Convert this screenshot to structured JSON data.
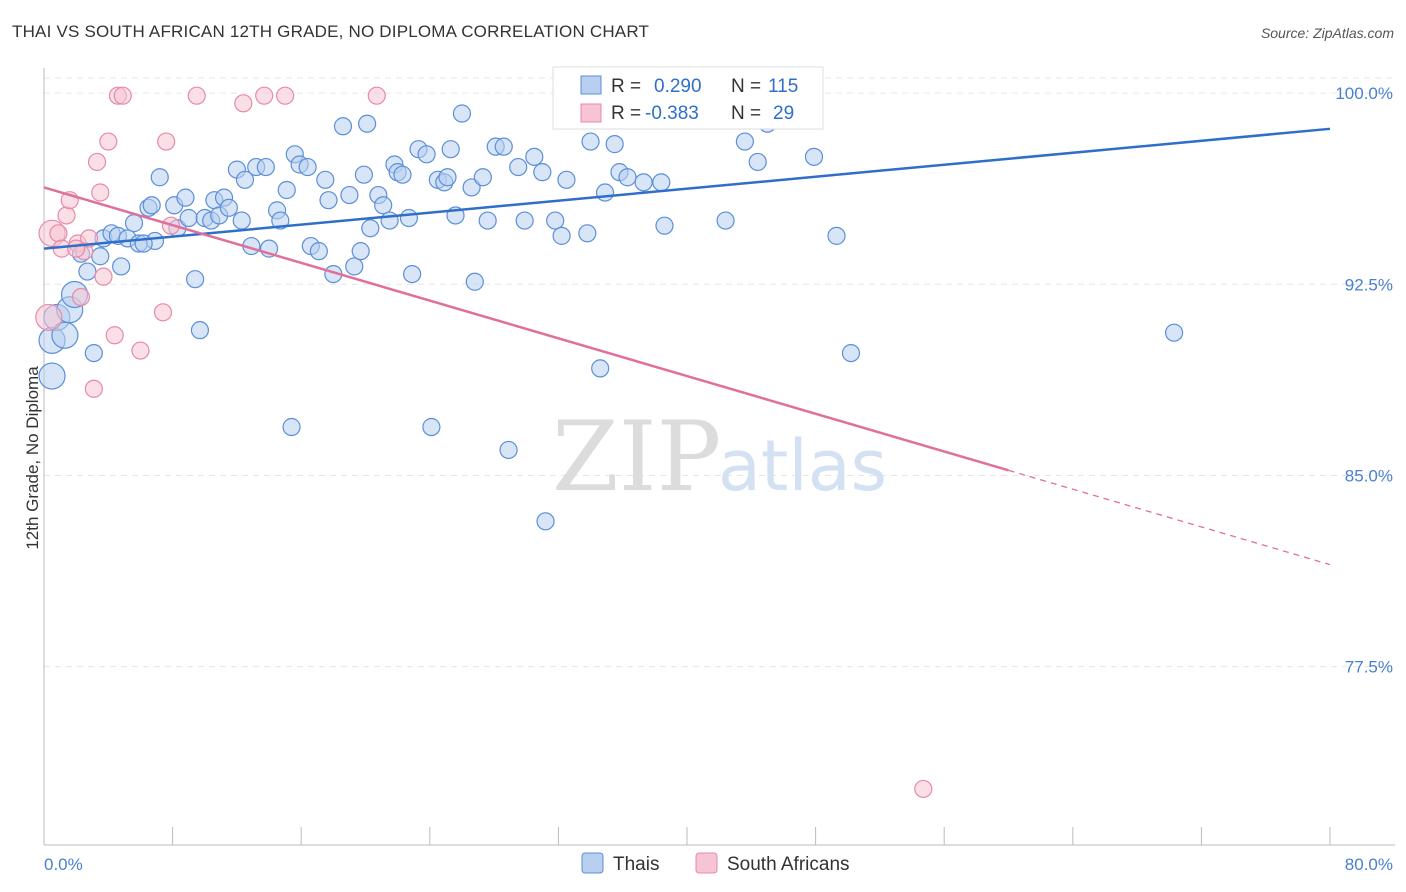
{
  "chart_data": {
    "type": "scatter",
    "title": "THAI VS SOUTH AFRICAN 12TH GRADE, NO DIPLOMA CORRELATION CHART",
    "source": "Source: ZipAtlas.com",
    "xlabel": "",
    "ylabel": "12th Grade, No Diploma",
    "xlim": [
      0,
      80
    ],
    "ylim": [
      70.5,
      101.3
    ],
    "x_tick_labels": [
      "0.0%",
      "80.0%"
    ],
    "y_ticks": [
      100.0,
      92.5,
      85.0,
      77.5
    ],
    "y_tick_labels": [
      "100.0%",
      "92.5%",
      "85.0%",
      "77.5%"
    ],
    "watermark": [
      "ZIP",
      "atlas"
    ],
    "legend": {
      "series": [
        {
          "name": "Thais",
          "r_label": "R =",
          "r_value": "0.290",
          "n_label": "N =",
          "n_value": "115"
        },
        {
          "name": "South Africans",
          "r_label": "R =",
          "r_value": "-0.383",
          "n_label": "N =",
          "n_value": "29"
        }
      ]
    },
    "series": [
      {
        "name": "Thais",
        "color": "#5b8fd8",
        "fill": "#b8cff0",
        "trend": {
          "x0": 0,
          "y0": 93.9,
          "x1": 80,
          "y1": 98.6,
          "line_color": "#2f6fc9"
        },
        "points": [
          [
            0.5,
            88.9
          ],
          [
            0.5,
            90.3
          ],
          [
            0.8,
            91.2
          ],
          [
            1.3,
            90.5
          ],
          [
            1.6,
            91.5
          ],
          [
            1.9,
            92.1
          ],
          [
            2.3,
            93.7
          ],
          [
            2.7,
            93.0
          ],
          [
            3.1,
            89.8
          ],
          [
            3.5,
            93.6
          ],
          [
            3.7,
            94.3
          ],
          [
            4.2,
            94.5
          ],
          [
            4.6,
            94.4
          ],
          [
            4.8,
            93.2
          ],
          [
            5.2,
            94.3
          ],
          [
            5.6,
            94.9
          ],
          [
            5.9,
            94.1
          ],
          [
            6.5,
            95.5
          ],
          [
            6.7,
            95.6
          ],
          [
            6.9,
            94.2
          ],
          [
            7.2,
            96.7
          ],
          [
            8.1,
            95.6
          ],
          [
            8.3,
            94.7
          ],
          [
            8.8,
            95.9
          ],
          [
            9.0,
            95.1
          ],
          [
            9.4,
            92.7
          ],
          [
            9.7,
            90.7
          ],
          [
            10.0,
            95.1
          ],
          [
            10.4,
            95.0
          ],
          [
            10.6,
            95.8
          ],
          [
            10.9,
            95.2
          ],
          [
            11.2,
            95.9
          ],
          [
            11.5,
            95.5
          ],
          [
            12.0,
            97.0
          ],
          [
            12.3,
            95.0
          ],
          [
            12.5,
            96.6
          ],
          [
            12.9,
            94.0
          ],
          [
            13.2,
            97.1
          ],
          [
            13.8,
            97.1
          ],
          [
            14.0,
            93.9
          ],
          [
            14.5,
            95.4
          ],
          [
            14.7,
            95.0
          ],
          [
            15.1,
            96.2
          ],
          [
            15.4,
            86.9
          ],
          [
            15.6,
            97.6
          ],
          [
            15.9,
            97.2
          ],
          [
            16.4,
            97.1
          ],
          [
            16.6,
            94.0
          ],
          [
            17.1,
            93.8
          ],
          [
            17.5,
            96.6
          ],
          [
            17.7,
            95.8
          ],
          [
            18.0,
            92.9
          ],
          [
            18.6,
            98.7
          ],
          [
            19.0,
            96.0
          ],
          [
            19.3,
            93.2
          ],
          [
            19.7,
            93.8
          ],
          [
            19.9,
            96.8
          ],
          [
            20.3,
            94.7
          ],
          [
            20.8,
            96.0
          ],
          [
            21.1,
            95.6
          ],
          [
            21.5,
            95.0
          ],
          [
            21.8,
            97.2
          ],
          [
            22.0,
            96.9
          ],
          [
            22.3,
            96.8
          ],
          [
            22.7,
            95.1
          ],
          [
            22.9,
            92.9
          ],
          [
            23.3,
            97.8
          ],
          [
            23.8,
            97.6
          ],
          [
            24.1,
            86.9
          ],
          [
            24.5,
            96.6
          ],
          [
            24.9,
            96.5
          ],
          [
            25.3,
            97.8
          ],
          [
            25.6,
            95.2
          ],
          [
            26.0,
            99.2
          ],
          [
            26.6,
            96.3
          ],
          [
            26.8,
            92.6
          ],
          [
            27.3,
            96.7
          ],
          [
            27.6,
            95.0
          ],
          [
            28.1,
            97.9
          ],
          [
            28.6,
            97.9
          ],
          [
            28.9,
            86.0
          ],
          [
            29.5,
            97.1
          ],
          [
            29.9,
            95.0
          ],
          [
            30.5,
            97.5
          ],
          [
            31.0,
            96.9
          ],
          [
            31.8,
            95.0
          ],
          [
            32.2,
            94.4
          ],
          [
            32.5,
            96.6
          ],
          [
            33.4,
            99.9
          ],
          [
            33.8,
            94.5
          ],
          [
            34.0,
            98.1
          ],
          [
            34.6,
            89.2
          ],
          [
            34.9,
            96.1
          ],
          [
            35.3,
            99.0
          ],
          [
            35.8,
            96.9
          ],
          [
            36.3,
            96.7
          ],
          [
            37.3,
            96.5
          ],
          [
            38.4,
            96.5
          ],
          [
            38.6,
            94.8
          ],
          [
            40.1,
            99.9
          ],
          [
            42.4,
            95.0
          ],
          [
            43.6,
            98.1
          ],
          [
            44.4,
            97.3
          ],
          [
            45.8,
            99.9
          ],
          [
            45.0,
            98.8
          ],
          [
            47.9,
            97.5
          ],
          [
            49.3,
            94.4
          ],
          [
            50.2,
            89.8
          ],
          [
            31.2,
            83.2
          ],
          [
            35.5,
            98.0
          ],
          [
            44.6,
            99.1
          ],
          [
            70.3,
            90.6
          ],
          [
            6.2,
            94.1
          ],
          [
            20.1,
            98.8
          ],
          [
            25.1,
            96.7
          ]
        ]
      },
      {
        "name": "South Africans",
        "color": "#e88aa8",
        "fill": "#f6c4d4",
        "trend": {
          "x0": 0,
          "y0": 96.3,
          "x1": 80,
          "y1": 81.5,
          "solid_until_x": 60,
          "line_color": "#e0709a"
        },
        "points": [
          [
            0.3,
            91.2
          ],
          [
            0.5,
            94.5
          ],
          [
            0.9,
            94.5
          ],
          [
            1.1,
            93.9
          ],
          [
            1.4,
            95.2
          ],
          [
            1.6,
            95.8
          ],
          [
            2.1,
            94.1
          ],
          [
            2.3,
            92.0
          ],
          [
            2.5,
            93.8
          ],
          [
            2.8,
            94.3
          ],
          [
            3.1,
            88.4
          ],
          [
            3.3,
            97.3
          ],
          [
            3.5,
            96.1
          ],
          [
            3.7,
            92.8
          ],
          [
            4.0,
            98.1
          ],
          [
            4.4,
            90.5
          ],
          [
            4.6,
            99.9
          ],
          [
            4.9,
            99.9
          ],
          [
            6.0,
            89.9
          ],
          [
            7.4,
            91.4
          ],
          [
            7.6,
            98.1
          ],
          [
            7.9,
            94.8
          ],
          [
            9.5,
            99.9
          ],
          [
            12.4,
            99.6
          ],
          [
            13.7,
            99.9
          ],
          [
            15.0,
            99.9
          ],
          [
            20.7,
            99.9
          ],
          [
            54.7,
            72.7
          ],
          [
            2.0,
            93.9
          ]
        ]
      }
    ]
  }
}
